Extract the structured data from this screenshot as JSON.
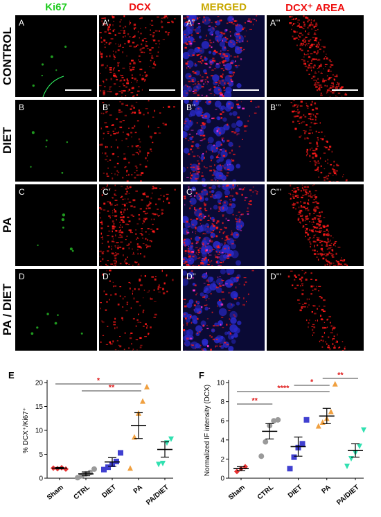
{
  "column_headers": [
    {
      "text": "Ki67",
      "color": "#22cc22"
    },
    {
      "text": "DCX",
      "color": "#ee1111"
    },
    {
      "text": "MERGED",
      "color": "#c8a800"
    },
    {
      "text": "DCX⁺ AREA",
      "color": "#ee1111"
    }
  ],
  "row_labels": [
    "CONTROL",
    "DIET",
    "PA",
    "PA / DIET"
  ],
  "panel_labels": [
    [
      "A",
      "A’",
      "A’’",
      "A’’’"
    ],
    [
      "B",
      "B’",
      "B’’",
      "B’’’"
    ],
    [
      "C",
      "C’",
      "C’’",
      "C’’’"
    ],
    [
      "D",
      "D’",
      "D’’",
      "D’’’"
    ]
  ],
  "chart_data": [
    {
      "panel": "E",
      "type": "scatter",
      "ylabel": "% DCX⁺/Ki67⁺",
      "categories": [
        "Sham",
        "CTRL",
        "DIET",
        "PA",
        "PA/DIET"
      ],
      "ylim": [
        0,
        20
      ],
      "yticks": [
        0,
        5,
        10,
        15,
        20
      ],
      "colors": [
        "#e83030",
        "#9a9a9a",
        "#4040d0",
        "#f0a040",
        "#30e0b0"
      ],
      "markers": [
        "diamond",
        "circle",
        "square",
        "triangle-up",
        "triangle-down"
      ],
      "points": [
        [
          2.1,
          2.0,
          2.2,
          1.9
        ],
        [
          0.1,
          0.5,
          0.9,
          1.2,
          1.9
        ],
        [
          1.8,
          2.3,
          2.9,
          3.5,
          5.3
        ],
        [
          2.0,
          8.5,
          13.5,
          16.0,
          19.0
        ],
        [
          3.0,
          3.2,
          7.5,
          8.3
        ]
      ],
      "mean": [
        2.1,
        0.9,
        3.4,
        11.0,
        6.0
      ],
      "sem": [
        0.15,
        0.4,
        0.9,
        2.7,
        1.6
      ],
      "significance": [
        {
          "from": "Sham",
          "to": "PA",
          "label": "*"
        },
        {
          "from": "CTRL",
          "to": "PA",
          "label": "**"
        }
      ]
    },
    {
      "panel": "F",
      "type": "scatter",
      "ylabel": "Normalized IF intensity (DCX)",
      "categories": [
        "Sham",
        "CTRL",
        "DIET",
        "PA",
        "PA/DIET"
      ],
      "ylim": [
        0,
        10
      ],
      "yticks": [
        0,
        2,
        4,
        6,
        8,
        10
      ],
      "colors": [
        "#e83030",
        "#9a9a9a",
        "#4040d0",
        "#f0a040",
        "#30e0b0"
      ],
      "markers": [
        "diamond",
        "circle",
        "square",
        "triangle-up",
        "triangle-down"
      ],
      "points": [
        [
          0.7,
          1.0,
          1.2
        ],
        [
          2.3,
          3.8,
          5.5,
          6.0,
          6.1
        ],
        [
          1.0,
          2.2,
          3.2,
          3.6,
          6.1
        ],
        [
          5.4,
          5.8,
          6.2,
          6.9,
          9.8
        ],
        [
          1.3,
          2.1,
          2.7,
          3.4,
          5.1
        ]
      ],
      "mean": [
        1.0,
        4.9,
        3.3,
        6.5,
        2.9
      ],
      "sem": [
        0.2,
        0.8,
        1.0,
        0.8,
        0.7
      ],
      "significance": [
        {
          "from": "Sham",
          "to": "CTRL",
          "label": "**"
        },
        {
          "from": "Sham",
          "to": "PA",
          "label": "****"
        },
        {
          "from": "DIET",
          "to": "PA",
          "label": "*"
        },
        {
          "from": "PA",
          "to": "PA/DIET",
          "label": "**"
        }
      ]
    }
  ],
  "figure_panel_labels": {
    "e": "E",
    "f": "F"
  }
}
